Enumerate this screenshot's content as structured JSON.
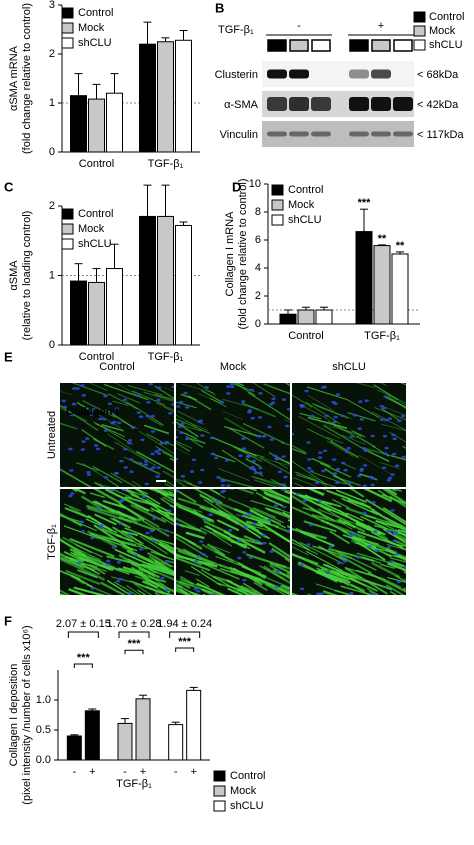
{
  "chart_data": [
    {
      "type": "bar",
      "ylabel": [
        "αSMA mRNA",
        "(fold change relative to control)"
      ],
      "categories": [
        "Control",
        "TGF-β₁"
      ],
      "series": [
        {
          "name": "Control",
          "color": "#000000",
          "values": [
            1.15,
            2.2
          ],
          "errors": [
            0.45,
            0.45
          ]
        },
        {
          "name": "Mock",
          "color": "#c8c8c8",
          "values": [
            1.08,
            2.25
          ],
          "errors": [
            0.3,
            0.08
          ]
        },
        {
          "name": "shCLU",
          "color": "#ffffff",
          "values": [
            1.2,
            2.28
          ],
          "errors": [
            0.4,
            0.2
          ]
        }
      ],
      "ylim": [
        0,
        3
      ],
      "yticks": [
        0,
        1,
        2,
        3
      ],
      "reference_line": 1
    },
    {
      "type": "bar",
      "panel": "C",
      "ylabel": [
        "αSMA",
        "(relative to loading control)"
      ],
      "categories": [
        "Control",
        "TGF-β₁"
      ],
      "series": [
        {
          "name": "Control",
          "color": "#000000",
          "values": [
            0.92,
            1.85
          ],
          "errors": [
            0.25,
            0.45
          ]
        },
        {
          "name": "Mock",
          "color": "#c8c8c8",
          "values": [
            0.9,
            1.85
          ],
          "errors": [
            0.2,
            0.45
          ]
        },
        {
          "name": "shCLU",
          "color": "#ffffff",
          "values": [
            1.1,
            1.72
          ],
          "errors": [
            0.35,
            0.05
          ]
        }
      ],
      "ylim": [
        0,
        2
      ],
      "yticks": [
        0,
        1,
        2
      ],
      "reference_line": 1
    },
    {
      "type": "bar",
      "panel": "D",
      "ylabel": [
        "Collagen I mRNA",
        "(fold change relative to control)"
      ],
      "categories": [
        "Control",
        "TGF-β₁"
      ],
      "series": [
        {
          "name": "Control",
          "color": "#000000",
          "values": [
            0.7,
            6.6
          ],
          "errors": [
            0.3,
            1.6
          ],
          "annotations": [
            null,
            "***"
          ]
        },
        {
          "name": "Mock",
          "color": "#c8c8c8",
          "values": [
            1.0,
            5.6
          ],
          "errors": [
            0.2,
            0.05
          ],
          "annotations": [
            null,
            "**"
          ]
        },
        {
          "name": "shCLU",
          "color": "#ffffff",
          "values": [
            1.0,
            5.0
          ],
          "errors": [
            0.2,
            0.15
          ],
          "annotations": [
            null,
            "**"
          ]
        }
      ],
      "ylim": [
        0,
        10
      ],
      "yticks": [
        0,
        2,
        4,
        6,
        8,
        10
      ],
      "reference_line": 1
    },
    {
      "type": "bar",
      "panel": "F",
      "group_by": "series",
      "ylabel": [
        "Collagen I deposition",
        "(pixel intensity /number of cells x10⁶)"
      ],
      "xlabel": "TGF-β₁",
      "categories": [
        "-",
        "+"
      ],
      "series": [
        {
          "name": "Control",
          "color": "#000000",
          "values": [
            0.4,
            0.82
          ],
          "errors": [
            0.02,
            0.03
          ],
          "fold_change": "2.07 ± 0.15",
          "significance": "***"
        },
        {
          "name": "Mock",
          "color": "#c8c8c8",
          "values": [
            0.61,
            1.02
          ],
          "errors": [
            0.08,
            0.06
          ],
          "fold_change": "1.70 ± 0.28",
          "significance": "***"
        },
        {
          "name": "shCLU",
          "color": "#ffffff",
          "values": [
            0.59,
            1.16
          ],
          "errors": [
            0.04,
            0.05
          ],
          "fold_change": "1.94 ± 0.24",
          "significance": "***"
        }
      ],
      "ylim": [
        0,
        1.5
      ],
      "yticks": [
        {
          "value": 0,
          "label": "0.0"
        },
        {
          "value": 0.5,
          "label": "0.5"
        },
        {
          "value": 1,
          "label": "1.0"
        }
      ]
    }
  ],
  "blot": {
    "panel": "B",
    "treatment": "TGF-β₁",
    "conditions": [
      "-",
      "+"
    ],
    "rows": [
      "Clusterin",
      "α-SMA",
      "Vinculin"
    ],
    "sizes": [
      "< 68kDa",
      "< 42kDa",
      "< 117kDa"
    ],
    "legend": [
      "Control",
      "Mock",
      "shCLU"
    ]
  },
  "micrographs": {
    "panel": "E",
    "stain": "Collagen I",
    "columns": [
      "Control",
      "Mock",
      "shCLU"
    ],
    "rows": [
      "Untreated",
      "TGF-β₁"
    ]
  }
}
